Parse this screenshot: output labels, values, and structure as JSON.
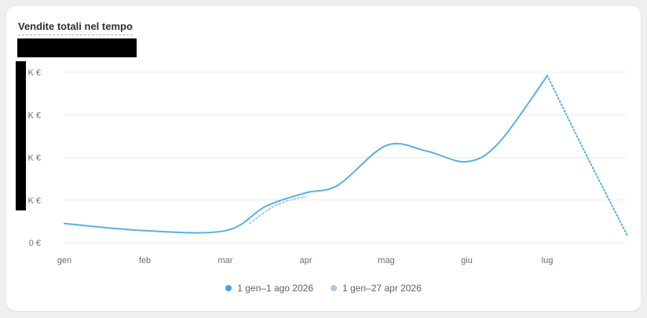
{
  "card": {
    "title": "Vendite totali nel tempo"
  },
  "colors": {
    "primary": "#5aafe4",
    "comparison": "#a8cfeb",
    "legend_primary": "#4b9fe2",
    "legend_comparison": "#a9cbe6",
    "grid": "#ececec",
    "axis_text": "#6d6d6d"
  },
  "chart_data": {
    "type": "line",
    "title": "Vendite totali nel tempo",
    "x_ticks": [
      "gen",
      "feb",
      "mar",
      "apr",
      "mag",
      "giu",
      "lug"
    ],
    "y_ticks": [
      "0 €",
      "K €",
      "K €",
      "K €",
      "K €"
    ],
    "ylim": [
      0,
      4
    ],
    "grid": true,
    "legend_position": "bottom",
    "series": [
      {
        "name": "1 gen–1 ago 2026",
        "style": "solid-then-dotted",
        "points": [
          {
            "x": 0.0,
            "y": 0.45
          },
          {
            "x": 1.0,
            "y": 0.28
          },
          {
            "x": 2.0,
            "y": 0.28
          },
          {
            "x": 2.5,
            "y": 0.85
          },
          {
            "x": 3.0,
            "y": 1.17
          },
          {
            "x": 3.4,
            "y": 1.35
          },
          {
            "x": 4.0,
            "y": 2.28
          },
          {
            "x": 4.5,
            "y": 2.15
          },
          {
            "x": 5.0,
            "y": 1.9
          },
          {
            "x": 5.4,
            "y": 2.35
          },
          {
            "x": 6.0,
            "y": 3.92
          },
          {
            "x": 6.5,
            "y": 2.0
          },
          {
            "x": 7.0,
            "y": 0.15
          }
        ],
        "dotted_from_x": 6.0
      },
      {
        "name": "1 gen–27 apr 2026",
        "style": "dotted",
        "points": [
          {
            "x": 2.3,
            "y": 0.45
          },
          {
            "x": 2.6,
            "y": 0.85
          },
          {
            "x": 2.85,
            "y": 1.02
          },
          {
            "x": 3.0,
            "y": 1.07
          }
        ]
      }
    ]
  }
}
